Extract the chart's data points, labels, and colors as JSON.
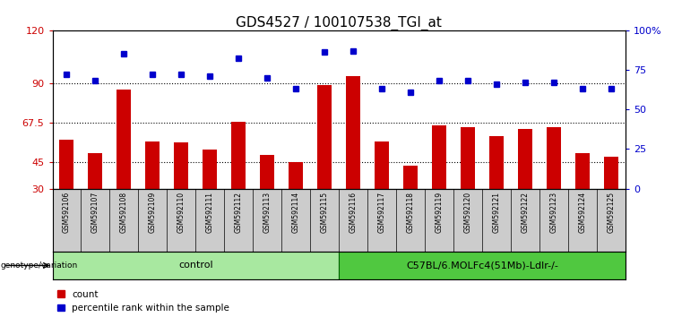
{
  "title": "GDS4527 / 100107538_TGI_at",
  "samples": [
    "GSM592106",
    "GSM592107",
    "GSM592108",
    "GSM592109",
    "GSM592110",
    "GSM592111",
    "GSM592112",
    "GSM592113",
    "GSM592114",
    "GSM592115",
    "GSM592116",
    "GSM592117",
    "GSM592118",
    "GSM592119",
    "GSM592120",
    "GSM592121",
    "GSM592122",
    "GSM592123",
    "GSM592124",
    "GSM592125"
  ],
  "counts": [
    58,
    50,
    86,
    57,
    56,
    52,
    68,
    49,
    45,
    89,
    94,
    57,
    43,
    66,
    65,
    60,
    64,
    65,
    50,
    48
  ],
  "percentiles": [
    72,
    68,
    85,
    72,
    72,
    71,
    82,
    70,
    63,
    86,
    87,
    63,
    61,
    68,
    68,
    66,
    67,
    67,
    63,
    63
  ],
  "control_count": 10,
  "group1_label": "control",
  "group2_label": "C57BL/6.MOLFc4(51Mb)-Ldlr-/-",
  "group1_color": "#a8e8a0",
  "group2_color": "#50c840",
  "bar_color": "#CC0000",
  "dot_color": "#0000CC",
  "ylim_left": [
    30,
    120
  ],
  "ylim_right": [
    0,
    100
  ],
  "yticks_left": [
    30,
    45,
    67.5,
    90,
    120
  ],
  "ytick_labels_left": [
    "30",
    "45",
    "67.5",
    "90",
    "120"
  ],
  "yticks_right": [
    0,
    25,
    50,
    75,
    100
  ],
  "ytick_labels_right": [
    "0",
    "25",
    "50",
    "75",
    "100%"
  ],
  "hlines": [
    45,
    67.5,
    90
  ],
  "title_fontsize": 11,
  "annotation_label": "genotype/variation",
  "legend_count": "count",
  "legend_percentile": "percentile rank within the sample",
  "plot_bg": "#ffffff",
  "tick_label_bg": "#cccccc"
}
